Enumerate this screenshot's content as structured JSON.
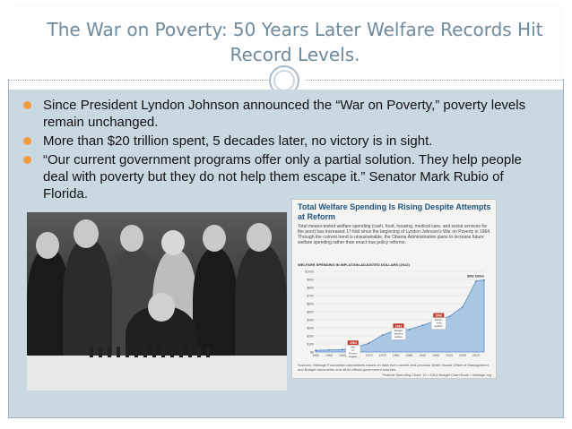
{
  "title": "The War on Poverty: 50 Years Later Welfare Records Hit Record Levels.",
  "bullets": [
    "Since President Lyndon Johnson announced the “War on Poverty,” poverty levels remain unchanged.",
    "More than $20 trillion spent, 5 decades later, no victory is in sight.",
    "“Our current government programs offer only a partial solution. They help people deal with poverty but they do not help them escape it.” Senator Mark Rubio of Florida."
  ],
  "colors": {
    "title": "#6d8a9e",
    "content_bg": "#cad8e2",
    "bullet": "#f39c3e",
    "chart_title": "#20537d",
    "chart_fill": "#a9c6e3",
    "label_box": "#c0392b"
  },
  "inset_chart": {
    "title": "Total Welfare Spending Is Rising Despite Attempts at Reform",
    "description": "Total means-tested welfare spending (cash, food, housing, medical care, and social services for the poor) has increased 17-fold since the beginning of Lyndon Johnson's War on Poverty in 1964. Through the current trend is unsustainable, the Obama Administration plans to increase future welfare spending rather than enact true policy reforms.",
    "subtitle": "WELFARE SPENDING IN INFLATION-ADJUSTED DOLLARS (2012)",
    "footnote": "Sources: Heritage Foundation calculations based on data from current and previous White House Office of Management and Budget documents and other official government sources.",
    "source": "Federal Spending Chart, 10 • 2014 Budget Chart Book • heritage.org",
    "end_label": "$892 billion",
    "annotations": [
      {
        "year": "1964",
        "text": "War on Poverty begins"
      },
      {
        "year": "1981",
        "text": "Reagan “slashes” welfare"
      },
      {
        "year": "1996",
        "text": "Reform “ends welfare”"
      }
    ]
  },
  "chart_data": {
    "type": "area",
    "title": "Total Welfare Spending Is Rising Despite Attempts at Reform",
    "ylabel": "WELFARE SPENDING IN INFLATION-ADJUSTED DOLLARS (2012)",
    "x": [
      1950,
      1955,
      1960,
      1965,
      1970,
      1975,
      1980,
      1985,
      1990,
      1995,
      2000,
      2005,
      2010,
      2013
    ],
    "values": [
      20,
      25,
      30,
      55,
      110,
      210,
      270,
      280,
      330,
      390,
      440,
      560,
      880,
      892
    ],
    "ylim": [
      0,
      1000
    ],
    "yticks": [
      "$0",
      "$100",
      "$200",
      "$300",
      "$400",
      "$500",
      "$600",
      "$700",
      "$800",
      "$900",
      "$1000"
    ],
    "xticks": [
      "1950",
      "1955",
      "1960",
      "1965",
      "1970",
      "1975",
      "1980",
      "1985",
      "1990",
      "1995",
      "2000",
      "2005",
      "2010"
    ]
  }
}
